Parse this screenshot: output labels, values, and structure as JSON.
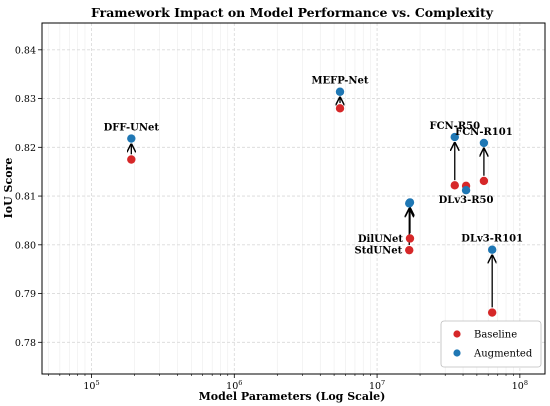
{
  "chart_data": {
    "type": "scatter",
    "title": "Framework Impact on Model Performance vs. Complexity",
    "xlabel": "Model Parameters (Log Scale)",
    "ylabel": "IoU Score",
    "x_scale": "log",
    "xlim": [
      45000,
      150000000
    ],
    "ylim": [
      0.7735,
      0.8455
    ],
    "x_ticks": [
      100000,
      1000000,
      10000000,
      100000000
    ],
    "x_tick_labels": [
      {
        "base": "10",
        "exp": "5"
      },
      {
        "base": "10",
        "exp": "6"
      },
      {
        "base": "10",
        "exp": "7"
      },
      {
        "base": "10",
        "exp": "8"
      }
    ],
    "y_ticks": [
      0.78,
      0.79,
      0.8,
      0.81,
      0.82,
      0.83,
      0.84
    ],
    "y_tick_labels": [
      "0.78",
      "0.79",
      "0.80",
      "0.81",
      "0.82",
      "0.83",
      "0.84"
    ],
    "grid": true,
    "legend_placement": "lower-right",
    "series": [
      {
        "name": "Baseline",
        "color": "#d62728"
      },
      {
        "name": "Augmented",
        "color": "#1f77b4"
      }
    ],
    "models": [
      {
        "label": "DFF-UNet",
        "params": 190000,
        "baseline": 0.8175,
        "augmented": 0.8218,
        "label_pos": "above"
      },
      {
        "label": "MEFP-Net",
        "params": 5500000,
        "baseline": 0.828,
        "augmented": 0.8314,
        "label_pos": "above"
      },
      {
        "label": "DilUNet",
        "params": 17000000,
        "baseline": 0.8013,
        "augmented": 0.8087,
        "label_pos": "left-baseline"
      },
      {
        "label": "StdUNet",
        "params": 16800000,
        "baseline": 0.7989,
        "augmented": 0.8085,
        "label_pos": "left-baseline"
      },
      {
        "label": "FCN-R50",
        "params": 35000000,
        "baseline": 0.8122,
        "augmented": 0.8221,
        "label_pos": "above"
      },
      {
        "label": "DLv3-R50",
        "params": 42000000,
        "baseline": 0.8121,
        "augmented": 0.8112,
        "label_pos": "below"
      },
      {
        "label": "FCN-R101",
        "params": 56000000,
        "baseline": 0.8131,
        "augmented": 0.8209,
        "label_pos": "above"
      },
      {
        "label": "DLv3-R101",
        "params": 64000000,
        "baseline": 0.7861,
        "augmented": 0.799,
        "label_pos": "above"
      }
    ]
  }
}
